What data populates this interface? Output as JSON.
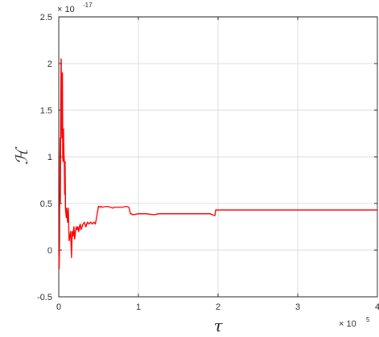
{
  "chart_data": {
    "type": "line",
    "xlabel": "𝜏",
    "ylabel": "ℋ",
    "xlim": [
      0,
      4
    ],
    "ylim": [
      -0.5,
      2.5
    ],
    "x_ticks": [
      0,
      1,
      2,
      3,
      4
    ],
    "x_tick_labels": [
      "0",
      "1",
      "2",
      "3",
      "4"
    ],
    "y_ticks": [
      -0.5,
      0,
      0.5,
      1,
      1.5,
      2,
      2.5
    ],
    "y_tick_labels": [
      "-0.5",
      "0",
      "0.5",
      "1",
      "1.5",
      "2",
      "2.5"
    ],
    "x_multiplier": {
      "base": "× 10",
      "exponent": "5"
    },
    "y_multiplier": {
      "base": "× 10",
      "exponent": "-17"
    },
    "grid": true,
    "series": [
      {
        "color": "#ff0000",
        "x": [
          0,
          0.005,
          0.01,
          0.012,
          0.015,
          0.018,
          0.02,
          0.025,
          0.03,
          0.035,
          0.04,
          0.045,
          0.05,
          0.055,
          0.06,
          0.065,
          0.07,
          0.075,
          0.08,
          0.085,
          0.09,
          0.095,
          0.1,
          0.11,
          0.12,
          0.13,
          0.14,
          0.15,
          0.16,
          0.17,
          0.18,
          0.19,
          0.2,
          0.21,
          0.22,
          0.23,
          0.24,
          0.25,
          0.26,
          0.27,
          0.28,
          0.3,
          0.32,
          0.34,
          0.36,
          0.38,
          0.4,
          0.42,
          0.44,
          0.46,
          0.5,
          0.52,
          0.53,
          0.55,
          0.6,
          0.65,
          0.68,
          0.7,
          0.75,
          0.8,
          0.85,
          0.88,
          0.9,
          0.91,
          0.93,
          1.0,
          1.1,
          1.2,
          1.25,
          1.3,
          1.5,
          1.7,
          1.9,
          1.96,
          1.97,
          2.0,
          2.5,
          3.0,
          3.5,
          4.0
        ],
        "y": [
          0,
          -0.2,
          0.1,
          0.6,
          1.0,
          1.2,
          0.5,
          1.4,
          2.05,
          1.5,
          1.2,
          1.9,
          1.0,
          0.95,
          1.3,
          1.05,
          0.95,
          0.6,
          0.95,
          0.45,
          0.4,
          0.35,
          0.45,
          0.3,
          0.45,
          0.1,
          0.15,
          0.2,
          -0.08,
          0.2,
          0.15,
          0.25,
          0.12,
          0.2,
          0.25,
          0.22,
          0.25,
          0.2,
          0.25,
          0.28,
          0.22,
          0.27,
          0.3,
          0.25,
          0.3,
          0.28,
          0.3,
          0.28,
          0.3,
          0.28,
          0.47,
          0.46,
          0.47,
          0.46,
          0.47,
          0.46,
          0.45,
          0.46,
          0.46,
          0.46,
          0.47,
          0.46,
          0.39,
          0.39,
          0.38,
          0.39,
          0.39,
          0.38,
          0.39,
          0.39,
          0.39,
          0.39,
          0.39,
          0.37,
          0.43,
          0.43,
          0.43,
          0.43,
          0.43,
          0.43
        ]
      }
    ]
  }
}
